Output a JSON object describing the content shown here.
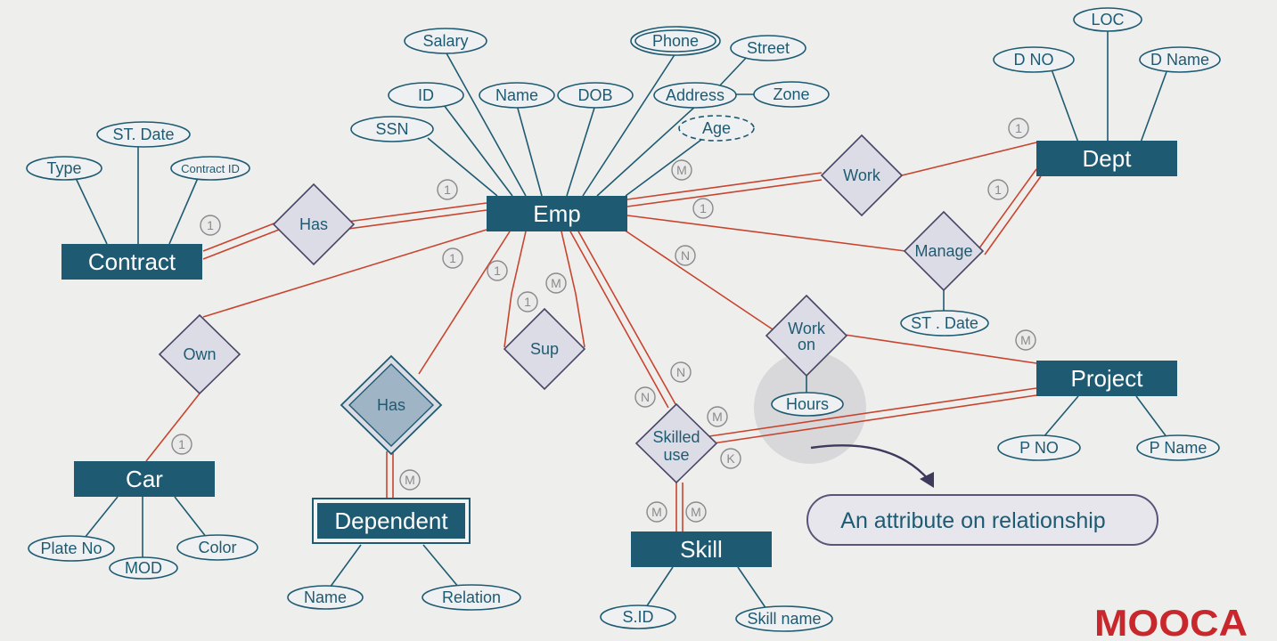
{
  "entities": {
    "emp": "Emp",
    "dept": "Dept",
    "contract": "Contract",
    "car": "Car",
    "dependent": "Dependent",
    "skill": "Skill",
    "project": "Project"
  },
  "attributes": {
    "salary": "Salary",
    "phone": "Phone",
    "street": "Street",
    "id": "ID",
    "name": "Name",
    "dob": "DOB",
    "address": "Address",
    "zone": "Zone",
    "ssn": "SSN",
    "age": "Age",
    "loc": "LOC",
    "dno": "D NO",
    "dname": "D Name",
    "st_date": "ST. Date",
    "type": "Type",
    "contract_id": "Contract ID",
    "manage_st_date": "ST . Date",
    "hours": "Hours",
    "pno": "P NO",
    "pname": "P Name",
    "plate_no": "Plate No",
    "mod": "MOD",
    "color": "Color",
    "dep_name": "Name",
    "relation": "Relation",
    "sid": "S.ID",
    "skill_name": "Skill name"
  },
  "relationships": {
    "has_contract": "Has",
    "work": "Work",
    "manage": "Manage",
    "own": "Own",
    "has_dependent": "Has",
    "sup": "Sup",
    "work_on_1": "Work",
    "work_on_2": "on",
    "skilled_use_1": "Skilled",
    "skilled_use_2": "use"
  },
  "cardinalities": {
    "contract_has": "1",
    "emp_has": "1",
    "emp_work": "M",
    "dept_work": "1",
    "emp_manage": "1",
    "dept_manage": "1",
    "emp_own": "1",
    "car_own": "1",
    "emp_has_dep": "1",
    "dep_has": "M",
    "sup_1": "1",
    "sup_m": "M",
    "emp_workon": "N",
    "project_workon": "M",
    "emp_skilled_a": "N",
    "emp_skilled_b": "N",
    "project_skilled": "M",
    "skilled_k": "K",
    "skill_m1": "M",
    "skill_m2": "M"
  },
  "note": {
    "text": "An attribute on relationship"
  },
  "logo": {
    "text": "MOOCA"
  },
  "colors": {
    "entity": "#1e5b72",
    "relationship_line": "#c8442f",
    "diamond_fill": "#dcdce6"
  }
}
